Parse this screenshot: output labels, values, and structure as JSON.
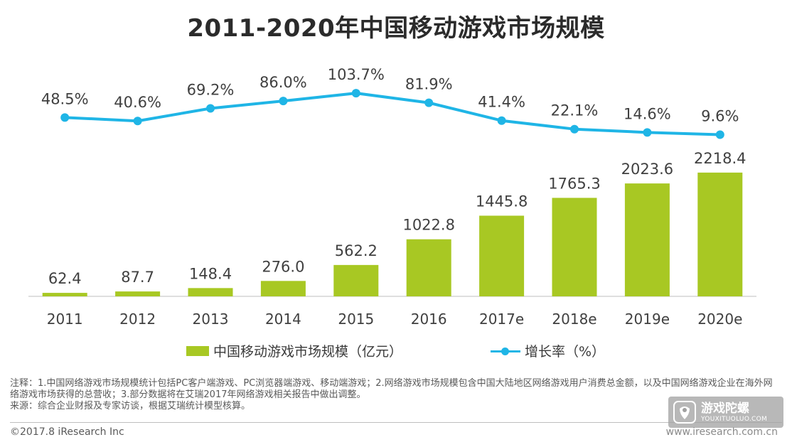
{
  "title": "2011-2020年中国移动游戏市场规模",
  "chart_data": {
    "type": "bar",
    "categories": [
      "2011",
      "2012",
      "2013",
      "2014",
      "2015",
      "2016",
      "2017e",
      "2018e",
      "2019e",
      "2020e"
    ],
    "series": [
      {
        "name": "中国移动游戏市场规模（亿元）",
        "type": "bar",
        "values": [
          62.4,
          87.7,
          148.4,
          276.0,
          562.2,
          1022.8,
          1445.8,
          1765.3,
          2023.6,
          2218.4
        ],
        "labels": [
          "62.4",
          "87.7",
          "148.4",
          "276.0",
          "562.2",
          "1022.8",
          "1445.8",
          "1765.3",
          "2023.6",
          "2218.4"
        ],
        "color": "#a8c823"
      },
      {
        "name": "增长率（%）",
        "type": "line",
        "values": [
          48.5,
          40.6,
          69.2,
          86.0,
          103.7,
          81.9,
          41.4,
          22.1,
          14.6,
          9.6
        ],
        "labels": [
          "48.5%",
          "40.6%",
          "69.2%",
          "86.0%",
          "103.7%",
          "81.9%",
          "41.4%",
          "22.1%",
          "14.6%",
          "9.6%"
        ],
        "color": "#1fb5e6"
      }
    ],
    "legend": "bottom-center",
    "grid": false
  },
  "legend": {
    "bar_label": "中国移动游戏市场规模（亿元）",
    "line_label": "增长率（%）"
  },
  "notes": {
    "line1": "注释：1.中国网络游戏市场规模统计包括PC客户端游戏、PC浏览器端游戏、移动端游戏；2.网络游戏市场规模包含中国大陆地区网络游戏用户消费总金额，以及中国网络游戏企业在海外网络游戏市场获得的总营收；3.部分数据将在艾瑞2017年网络游戏相关报告中做出调整。",
    "line2": "来源：综合企业财报及专家访谈，根据艾瑞统计模型核算。"
  },
  "copyright": "©2017.8 iResearch Inc",
  "website": "www.iresearch.com.cn",
  "watermark": {
    "cn": "游戏陀螺",
    "en": "YOUXITUOLUO.COM"
  }
}
